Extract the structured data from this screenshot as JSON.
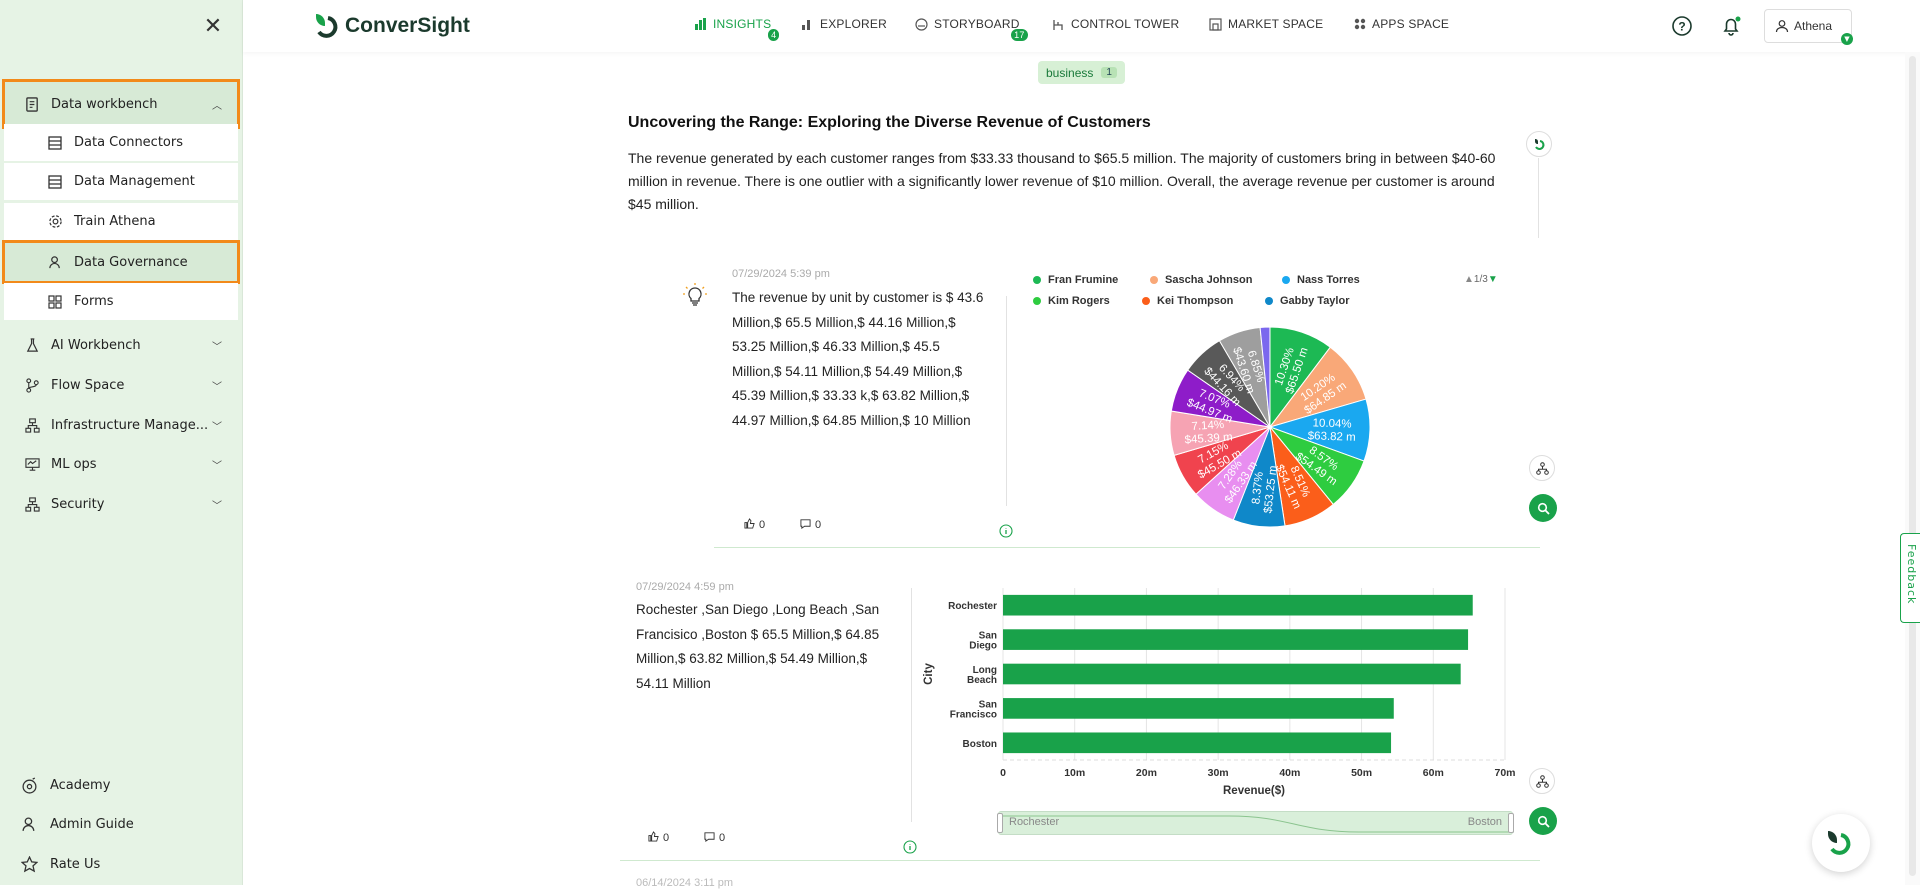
{
  "sidebar": {
    "close_icon": "close-icon",
    "items": [
      {
        "label": "Data workbench",
        "icon": "workbench-icon",
        "expanded": true
      },
      {
        "label": "AI Workbench",
        "icon": "flask-icon"
      },
      {
        "label": "Flow Space",
        "icon": "flow-icon"
      },
      {
        "label": "Infrastructure Manage...",
        "icon": "infrastructure-icon"
      },
      {
        "label": "ML ops",
        "icon": "monitor-icon"
      },
      {
        "label": "Security",
        "icon": "security-icon"
      }
    ],
    "subitems": [
      {
        "label": "Data Connectors",
        "icon": "connector-icon"
      },
      {
        "label": "Data Management",
        "icon": "table-icon"
      },
      {
        "label": "Train Athena",
        "icon": "gear-icon"
      },
      {
        "label": "Data Governance",
        "icon": "governance-icon"
      },
      {
        "label": "Forms",
        "icon": "grid-icon"
      }
    ],
    "footer": [
      {
        "label": "Academy",
        "icon": "academy-icon"
      },
      {
        "label": "Admin Guide",
        "icon": "guide-icon"
      },
      {
        "label": "Rate Us",
        "icon": "star-icon"
      }
    ]
  },
  "header": {
    "brand": "ConverSight",
    "nav": [
      {
        "label": "INSIGHTS",
        "badge": "4",
        "active": true
      },
      {
        "label": "EXPLORER"
      },
      {
        "label": "STORYBOARD",
        "badge": "17"
      },
      {
        "label": "CONTROL TOWER"
      },
      {
        "label": "MARKET SPACE"
      },
      {
        "label": "APPS SPACE"
      }
    ],
    "user": "Athena"
  },
  "filter_chip": {
    "label": "business",
    "count": "1"
  },
  "insight": {
    "title": "Uncovering the Range: Exploring the Diverse Revenue of Customers",
    "description": "The revenue generated by each customer ranges from $33.33 thousand to $65.5 million. The majority of customers bring in between $40-60 million in revenue. There is one outlier with a significantly lower revenue of $10 million. Overall, the average revenue per customer is around $45 million."
  },
  "card1": {
    "timestamp": "07/29/2024 5:39 pm",
    "text": "The revenue by unit by customer is $ 43.6 Million,$ 65.5 Million,$ 44.16 Million,$ 53.25 Million,$ 46.33 Million,$ 45.5 Million,$ 54.11 Million,$ 54.49 Million,$ 45.39 Million,$ 33.33 k,$ 63.82 Million,$ 44.97 Million,$ 64.85 Million,$ 10 Million",
    "likes": "0",
    "comments": "0",
    "legend_page": "1/3",
    "legend": [
      {
        "name": "Fran Frumine",
        "color": "#1db954"
      },
      {
        "name": "Sascha Johnson",
        "color": "#f9a878"
      },
      {
        "name": "Nass Torres",
        "color": "#1aa8f0"
      },
      {
        "name": "Kim Rogers",
        "color": "#2ecc40"
      },
      {
        "name": "Kei Thompson",
        "color": "#fb5e1a"
      },
      {
        "name": "Gabby Taylor",
        "color": "#0f88c9"
      }
    ]
  },
  "card2": {
    "timestamp": "07/29/2024 4:59 pm",
    "text": "Rochester ,San Diego ,Long Beach ,San Francisico ,Boston $ 65.5 Million,$ 64.85 Million,$ 63.82 Million,$ 54.49 Million,$ 54.11 Million",
    "likes": "0",
    "comments": "0",
    "slider_start": "Rochester",
    "slider_end": "Boston"
  },
  "next_timestamp": "06/14/2024 3:11 pm",
  "feedback_label": "Feedback",
  "chart_data": [
    {
      "type": "pie",
      "slices": [
        {
          "value": 65.5,
          "label": "10.30%",
          "sublabel": "$65.50 m",
          "color": "#1db954"
        },
        {
          "value": 64.85,
          "label": "10.20%",
          "sublabel": "$64.85 m",
          "color": "#f9a878"
        },
        {
          "value": 63.82,
          "label": "10.04%",
          "sublabel": "$63.82 m",
          "color": "#1aa8f0"
        },
        {
          "value": 54.49,
          "label": "8.57%",
          "sublabel": "$54.49 m",
          "color": "#2ecc40"
        },
        {
          "value": 54.11,
          "label": "8.51%",
          "sublabel": "$54.11 m",
          "color": "#fb5e1a"
        },
        {
          "value": 53.25,
          "label": "8.37%",
          "sublabel": "$53.25 m",
          "color": "#0f88c9"
        },
        {
          "value": 46.33,
          "label": "7.28%",
          "sublabel": "$46.33 m",
          "color": "#e88ef0"
        },
        {
          "value": 45.5,
          "label": "7.15%",
          "sublabel": "$45.50 m",
          "color": "#f0434e"
        },
        {
          "value": 45.39,
          "label": "7.14%",
          "sublabel": "$45.39 m",
          "color": "#f6a3b3"
        },
        {
          "value": 44.97,
          "label": "7.07%",
          "sublabel": "$44.97 m",
          "color": "#8e1cc9"
        },
        {
          "value": 44.16,
          "label": "6.94%",
          "sublabel": "$44.16 m",
          "color": "#595959"
        },
        {
          "value": 43.6,
          "label": "6.85%",
          "sublabel": "$43.60 m",
          "color": "#9e9e9e"
        },
        {
          "value": 10,
          "label": "",
          "sublabel": "",
          "color": "#7b68ee"
        },
        {
          "value": 0.03333,
          "label": "",
          "sublabel": "",
          "color": "#c0c0c0"
        }
      ]
    },
    {
      "type": "bar",
      "orientation": "horizontal",
      "categories": [
        "Rochester",
        "San Diego",
        "Long Beach",
        "San Francisco",
        "Boston"
      ],
      "values": [
        65.5,
        64.85,
        63.82,
        54.49,
        54.11
      ],
      "ylabel": "City",
      "xlabel": "Revenue($)",
      "xticks": [
        "0",
        "10m",
        "20m",
        "30m",
        "40m",
        "50m",
        "60m",
        "70m"
      ],
      "xlim": [
        0,
        70
      ],
      "color": "#19a24a"
    }
  ]
}
